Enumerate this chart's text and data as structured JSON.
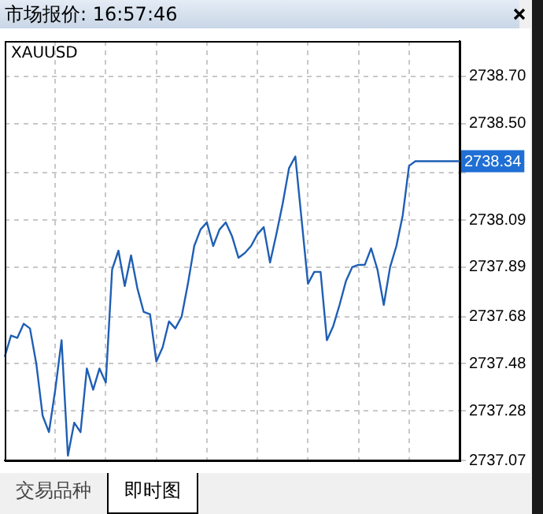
{
  "chart_data": {
    "type": "line",
    "title": "市场报价: 16:57:46",
    "annotations": [
      "XAUUSD",
      "2738.34",
      "交易品种",
      "即时图"
    ],
    "categories": [
      null,
      null,
      null,
      null,
      null,
      null,
      null,
      null,
      null,
      null,
      null,
      null,
      null,
      null,
      null,
      null,
      null,
      null,
      null,
      null,
      null,
      null,
      null,
      null,
      null,
      null,
      null,
      null,
      null,
      null,
      null,
      null,
      null,
      null,
      null,
      null,
      null,
      null,
      null,
      null,
      null,
      null,
      null,
      null,
      null,
      null,
      null,
      null,
      null,
      null,
      null,
      null,
      null,
      null,
      null,
      null,
      null,
      null,
      null,
      null,
      null,
      null,
      null,
      null,
      null,
      null,
      null,
      null,
      null,
      null,
      null,
      null,
      null
    ],
    "series": [
      {
        "color": "#1f5fb4",
        "values": [
          2737.51,
          2737.6,
          2737.59,
          2737.65,
          2737.63,
          2737.48,
          2737.26,
          2737.19,
          2737.37,
          2737.58,
          2737.09,
          2737.23,
          2737.19,
          2737.46,
          2737.37,
          2737.46,
          2737.4,
          2737.88,
          2737.96,
          2737.81,
          2737.94,
          2737.8,
          2737.7,
          2737.69,
          2737.49,
          2737.55,
          2737.66,
          2737.63,
          2737.68,
          2737.82,
          2737.98,
          2738.05,
          2738.08,
          2737.98,
          2738.05,
          2738.08,
          2738.02,
          2737.93,
          2737.95,
          2737.98,
          2738.03,
          2738.06,
          2737.91,
          2738.03,
          2738.16,
          2738.31,
          2738.36,
          2738.09,
          2737.82,
          2737.87,
          2737.87,
          2737.58,
          2737.64,
          2737.73,
          2737.83,
          2737.89,
          2737.9,
          2737.9,
          2737.97,
          2737.88,
          2737.73,
          2737.89,
          2737.98,
          2738.11,
          2738.32,
          2738.34,
          2738.34,
          2738.34,
          2738.34,
          2738.34,
          2738.34,
          2738.34,
          2738.34
        ]
      }
    ],
    "ylim": [
      2737.07,
      2738.85
    ],
    "yticks": [
      {
        "value": 2737.07,
        "label": "2737.07"
      },
      {
        "value": 2737.28,
        "label": "2737.28"
      },
      {
        "value": 2737.48,
        "label": "2737.48"
      },
      {
        "value": 2737.68,
        "label": "2737.68"
      },
      {
        "value": 2737.89,
        "label": "2737.89"
      },
      {
        "value": 2738.09,
        "label": "2738.09"
      },
      {
        "value": 2738.29,
        "label": null
      },
      {
        "value": 2738.5,
        "label": "2738.50"
      },
      {
        "value": 2738.7,
        "label": "2738.70"
      }
    ],
    "grid": true,
    "tick_labels": "y",
    "marker": "none",
    "line_style": "solid"
  }
}
